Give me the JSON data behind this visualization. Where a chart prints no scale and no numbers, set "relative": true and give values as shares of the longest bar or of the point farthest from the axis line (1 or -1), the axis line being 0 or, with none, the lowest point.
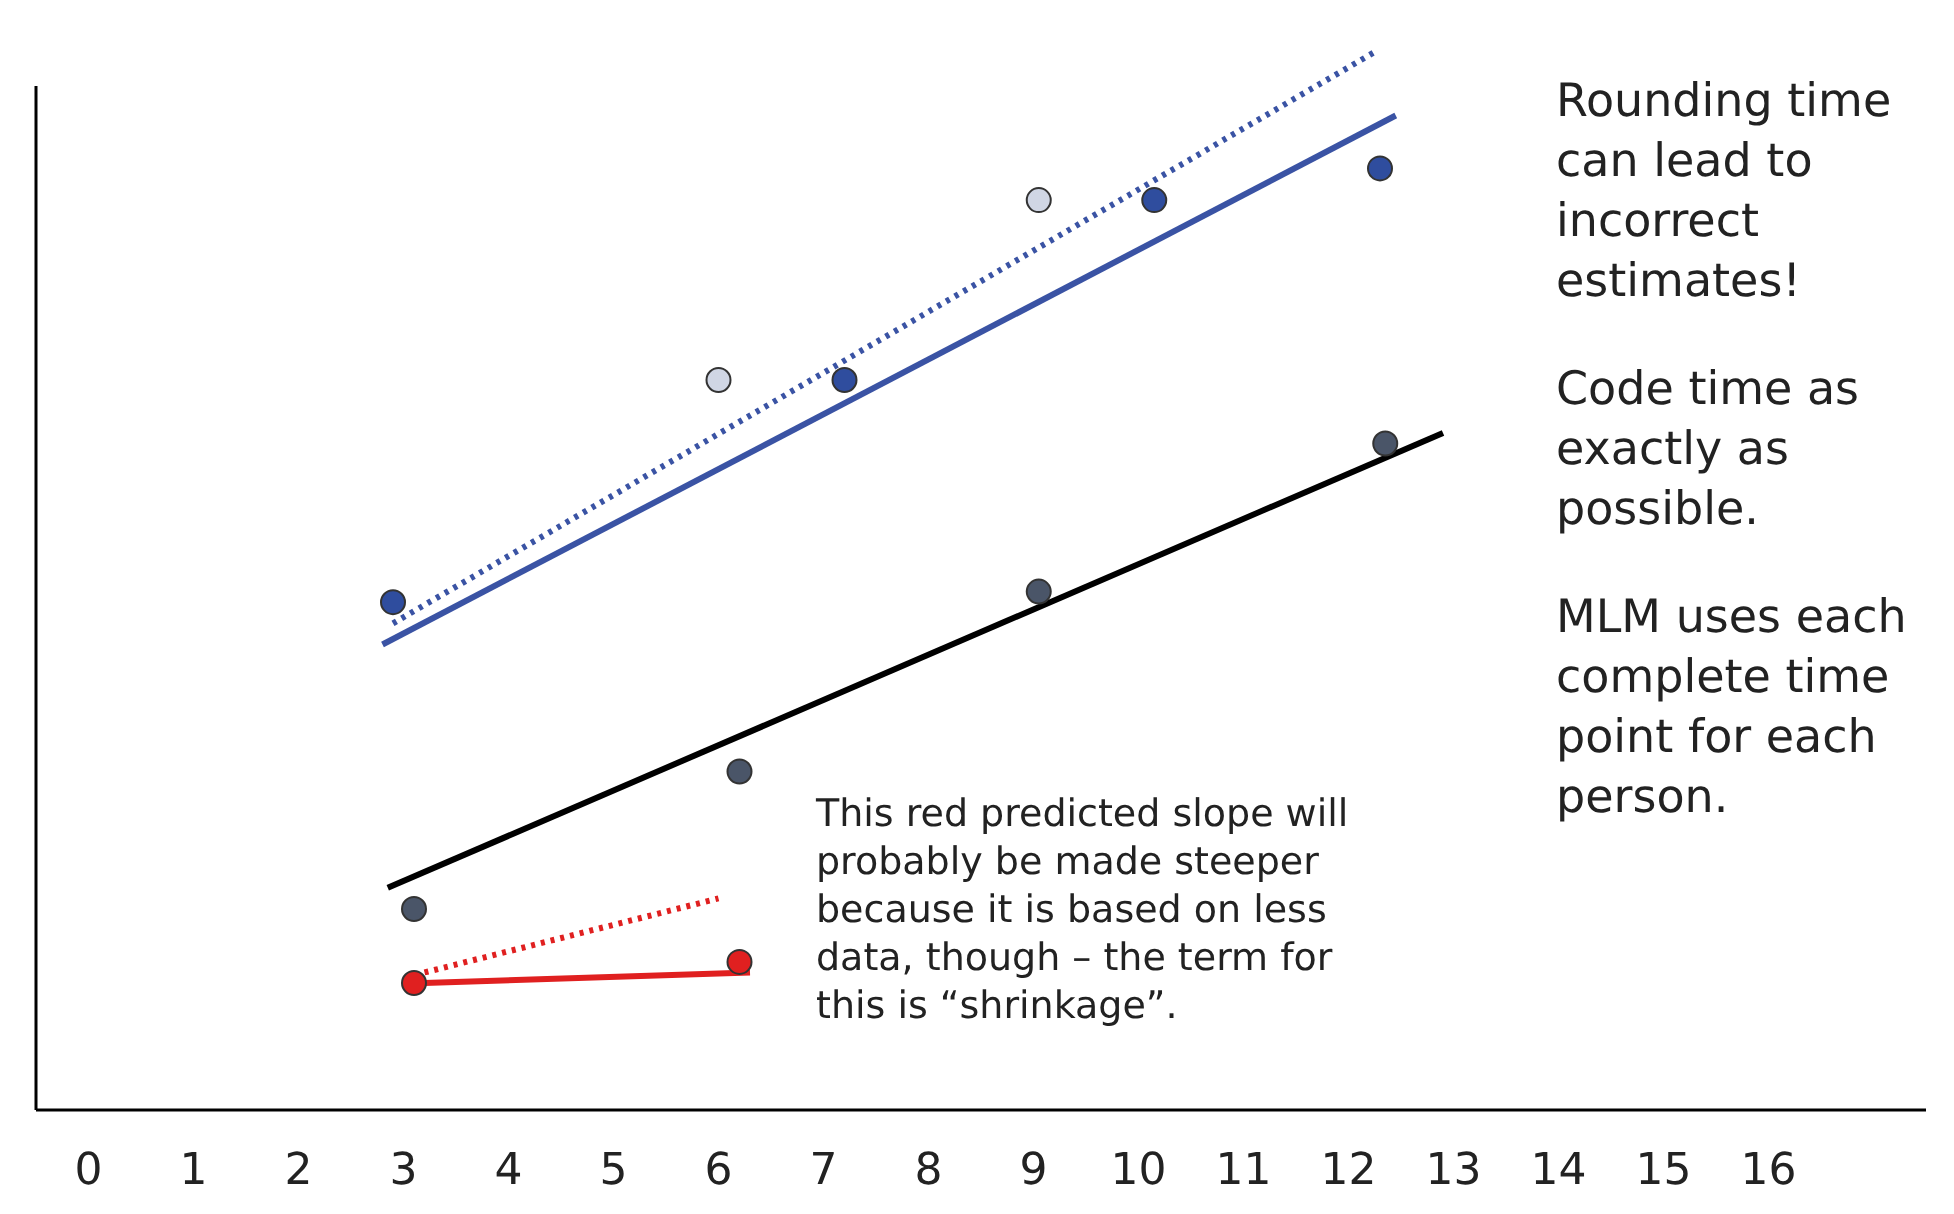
{
  "chart_data": {
    "type": "scatter",
    "relative": true,
    "xlim": [
      -0.5,
      17.5
    ],
    "xticks": [
      0,
      1,
      2,
      3,
      4,
      5,
      6,
      7,
      8,
      9,
      10,
      11,
      12,
      13,
      14,
      15,
      16
    ],
    "tick_labels": "x",
    "grid": false,
    "series": [
      {
        "type": "line",
        "color": "#3a53a4",
        "marker": "none",
        "line_style": "solid",
        "x": [
          2.8,
          12.45
        ],
        "values": [
          0.44,
          0.94
        ]
      },
      {
        "type": "line",
        "color": "#3a53a4",
        "marker": "none",
        "line_style": "dotted",
        "x": [
          2.9,
          12.25
        ],
        "values": [
          0.46,
          1
        ]
      },
      {
        "type": "line",
        "color": "#000000",
        "marker": "none",
        "line_style": "solid",
        "x": [
          2.85,
          12.9
        ],
        "values": [
          0.21,
          0.64
        ]
      },
      {
        "type": "line",
        "color": "#e02020",
        "marker": "none",
        "line_style": "solid",
        "x": [
          3.2,
          6.3
        ],
        "values": [
          0.12,
          0.13
        ]
      },
      {
        "type": "line",
        "color": "#e02020",
        "marker": "none",
        "line_style": "dotted",
        "x": [
          3.2,
          6.0
        ],
        "values": [
          0.13,
          0.2
        ]
      },
      {
        "color": "#2f4d9e",
        "marker": "circle",
        "x": [
          2.9,
          7.2,
          10.15,
          12.3
        ],
        "values": [
          0.48,
          0.69,
          0.86,
          0.89
        ]
      },
      {
        "color": "#d0d6e4",
        "marker": "circle",
        "x": [
          6.0,
          9.05
        ],
        "values": [
          0.69,
          0.86
        ]
      },
      {
        "color": "#4a5568",
        "marker": "circle",
        "x": [
          3.1,
          6.2,
          9.05,
          12.35
        ],
        "values": [
          0.19,
          0.32,
          0.49,
          0.63
        ]
      },
      {
        "color": "#e02020",
        "marker": "circle",
        "x": [
          3.1,
          6.2
        ],
        "values": [
          0.12,
          0.14
        ]
      }
    ],
    "annotations": [
      "This red predicted slope will probably be made steeper because it is based on less data, though – the term for this is “shrinkage”.",
      "Rounding time can lead to incorrect estimates!",
      "Code time as exactly as possible.",
      "MLM uses each complete time point for each person."
    ]
  }
}
